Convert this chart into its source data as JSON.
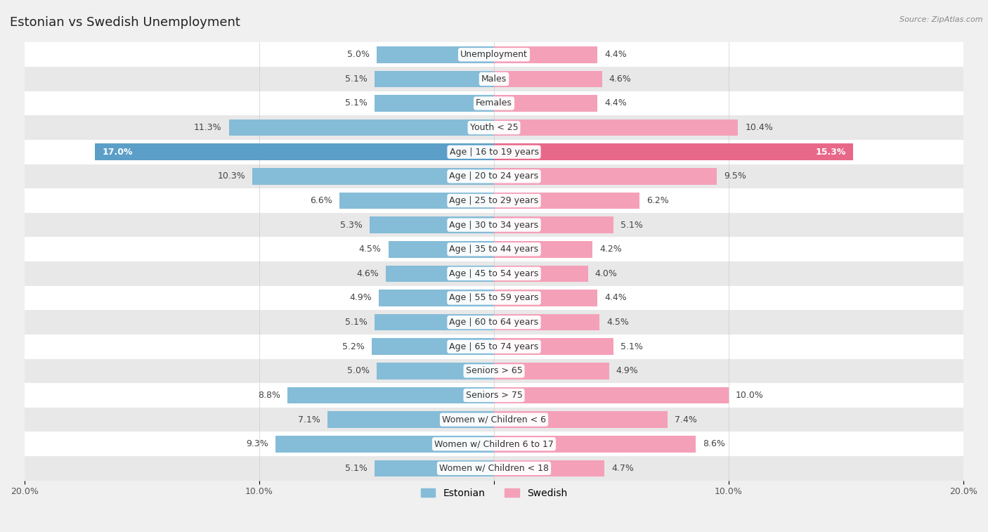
{
  "title": "Estonian vs Swedish Unemployment",
  "source": "Source: ZipAtlas.com",
  "categories": [
    "Unemployment",
    "Males",
    "Females",
    "Youth < 25",
    "Age | 16 to 19 years",
    "Age | 20 to 24 years",
    "Age | 25 to 29 years",
    "Age | 30 to 34 years",
    "Age | 35 to 44 years",
    "Age | 45 to 54 years",
    "Age | 55 to 59 years",
    "Age | 60 to 64 years",
    "Age | 65 to 74 years",
    "Seniors > 65",
    "Seniors > 75",
    "Women w/ Children < 6",
    "Women w/ Children 6 to 17",
    "Women w/ Children < 18"
  ],
  "estonian": [
    5.0,
    5.1,
    5.1,
    11.3,
    17.0,
    10.3,
    6.6,
    5.3,
    4.5,
    4.6,
    4.9,
    5.1,
    5.2,
    5.0,
    8.8,
    7.1,
    9.3,
    5.1
  ],
  "swedish": [
    4.4,
    4.6,
    4.4,
    10.4,
    15.3,
    9.5,
    6.2,
    5.1,
    4.2,
    4.0,
    4.4,
    4.5,
    5.1,
    4.9,
    10.0,
    7.4,
    8.6,
    4.7
  ],
  "estonian_color": "#85bcd8",
  "swedish_color": "#f4a0b8",
  "highlight_estonian_color": "#5b9fc8",
  "highlight_swedish_color": "#e8688a",
  "bg_color": "#f0f0f0",
  "row_bg_white": "#ffffff",
  "row_bg_gray": "#e8e8e8",
  "axis_max": 20.0,
  "bar_height": 0.68,
  "title_fontsize": 13,
  "label_fontsize": 9,
  "value_fontsize": 9,
  "tick_fontsize": 9,
  "highlight_rows": [
    4
  ]
}
